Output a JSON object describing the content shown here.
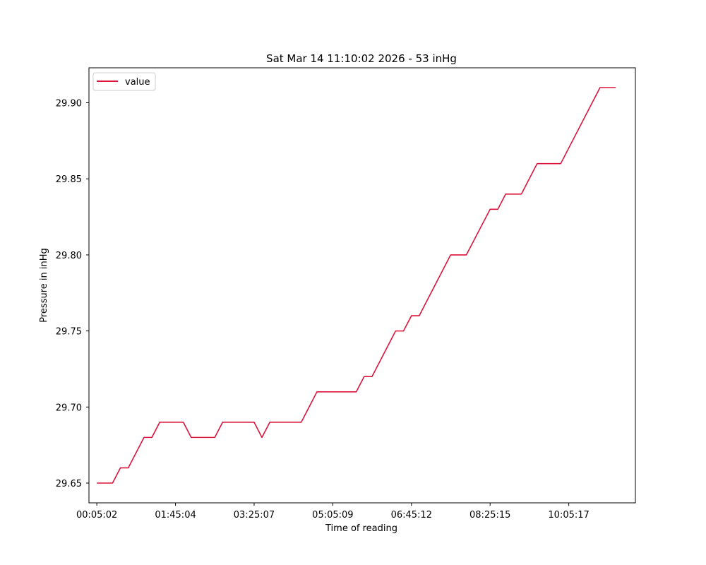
{
  "chart_data": {
    "type": "line",
    "title": "Sat Mar 14 11:10:02 2026 - 53 inHg",
    "xlabel": "Time of reading",
    "ylabel": "Pressure in inHg",
    "x_tick_labels": [
      "00:05:02",
      "01:45:04",
      "03:25:07",
      "05:05:09",
      "06:45:12",
      "08:25:15",
      "10:05:17"
    ],
    "x_tick_values": [
      "00:05:02",
      "01:45:04",
      "03:25:07",
      "05:05:09",
      "06:45:12",
      "08:25:15",
      "10:05:17"
    ],
    "xlim": [
      "23:55:02",
      "11:30:02"
    ],
    "y_ticks": [
      29.65,
      29.7,
      29.75,
      29.8,
      29.85,
      29.9
    ],
    "y_tick_labels": [
      "29.65",
      "29.70",
      "29.75",
      "29.80",
      "29.85",
      "29.90"
    ],
    "ylim": [
      29.637,
      29.923
    ],
    "grid": false,
    "legend_position": "upper left",
    "series": [
      {
        "name": "value",
        "color": "#dc143c",
        "x": [
          "00:05:02",
          "00:25:02",
          "00:35:02",
          "00:45:02",
          "01:05:02",
          "01:15:02",
          "01:25:02",
          "01:55:02",
          "02:05:02",
          "02:35:02",
          "02:45:02",
          "03:25:07",
          "03:35:02",
          "03:45:02",
          "04:25:02",
          "04:45:02",
          "05:25:02",
          "05:35:02",
          "05:45:02",
          "05:55:02",
          "06:25:02",
          "06:35:02",
          "06:45:12",
          "06:55:02",
          "07:35:02",
          "07:55:02",
          "08:25:15",
          "08:35:02",
          "08:45:02",
          "09:05:02",
          "09:25:02",
          "09:55:02",
          "10:45:02",
          "11:05:02"
        ],
        "values": [
          29.65,
          29.65,
          29.66,
          29.66,
          29.68,
          29.68,
          29.69,
          29.69,
          29.68,
          29.68,
          29.69,
          29.69,
          29.68,
          29.69,
          29.69,
          29.71,
          29.71,
          29.71,
          29.72,
          29.72,
          29.75,
          29.75,
          29.76,
          29.76,
          29.8,
          29.8,
          29.83,
          29.83,
          29.84,
          29.84,
          29.86,
          29.86,
          29.91,
          29.91
        ]
      }
    ]
  }
}
